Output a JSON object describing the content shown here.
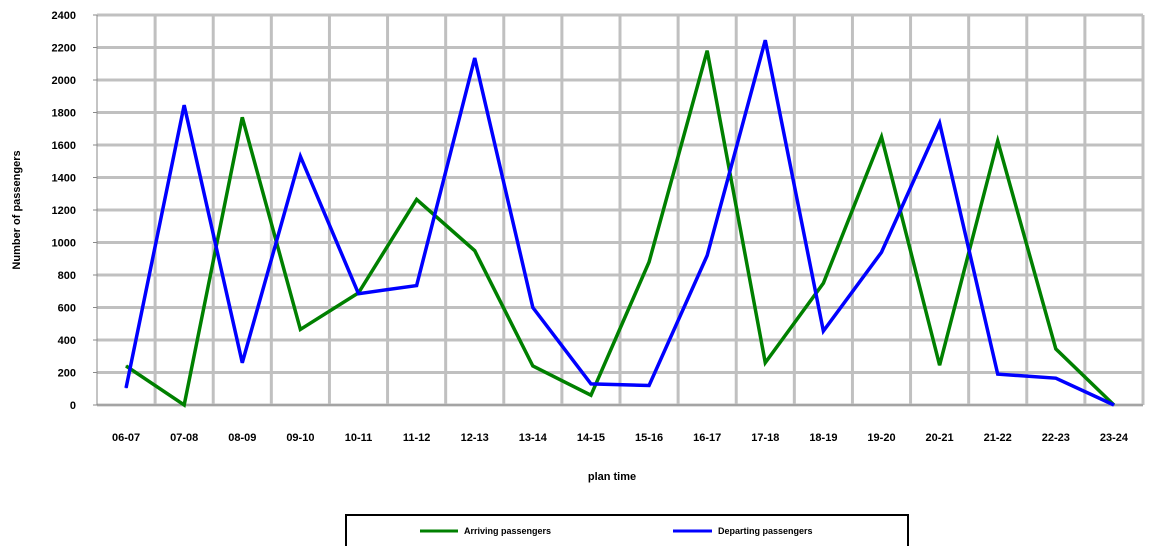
{
  "chart_data": {
    "type": "line",
    "title": "",
    "xlabel": "plan time",
    "ylabel": "Number of passengers",
    "categories": [
      "06-07",
      "07-08",
      "08-09",
      "09-10",
      "10-11",
      "11-12",
      "12-13",
      "13-14",
      "14-15",
      "15-16",
      "16-17",
      "17-18",
      "18-19",
      "19-20",
      "20-21",
      "21-22",
      "22-23",
      "23-24"
    ],
    "ylim": [
      0,
      2400
    ],
    "yticks": [
      0,
      200,
      400,
      600,
      800,
      1000,
      1200,
      1400,
      1600,
      1800,
      2000,
      2200,
      2400
    ],
    "grid": true,
    "legend_position": "bottom",
    "series": [
      {
        "name": "Arriving passengers",
        "color": "#008000",
        "values": [
          240,
          0,
          1770,
          465,
          690,
          1265,
          950,
          240,
          60,
          880,
          2180,
          260,
          750,
          1650,
          245,
          1625,
          345,
          0
        ]
      },
      {
        "name": "Departing passengers",
        "color": "#0000ff",
        "values": [
          105,
          1845,
          260,
          1530,
          685,
          735,
          2135,
          600,
          130,
          120,
          920,
          2245,
          455,
          940,
          1735,
          190,
          165,
          0
        ]
      }
    ]
  }
}
